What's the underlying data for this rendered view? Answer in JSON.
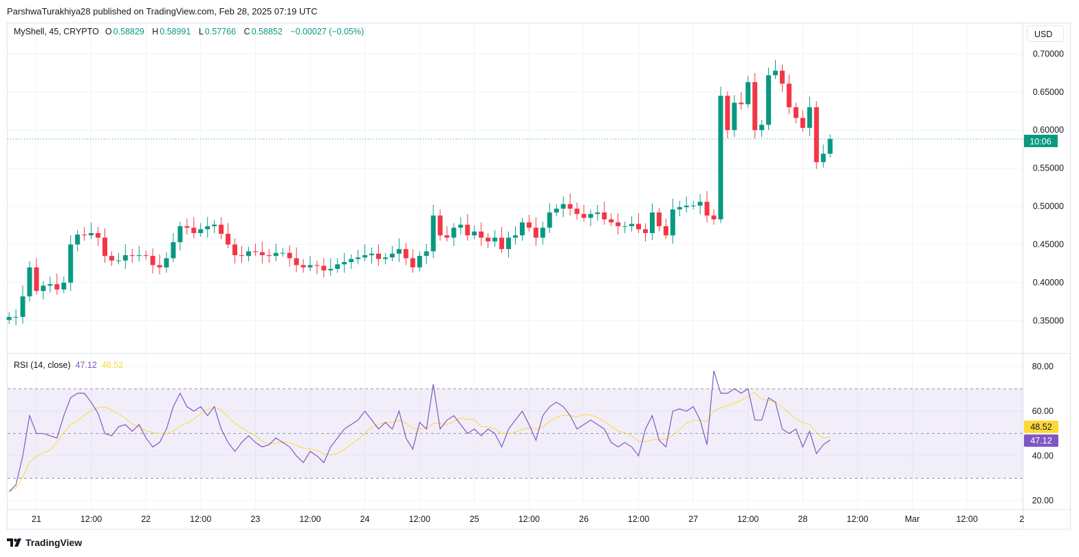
{
  "header": {
    "published": "ParshwaTurakhiya28 published on TradingView.com, Feb 28, 2025 07:19 UTC"
  },
  "legend": {
    "symbol": "MyShell, 45, CRYPTO",
    "open_label": "O",
    "open": "0.58829",
    "high_label": "H",
    "high": "0.58991",
    "low_label": "L",
    "low": "0.57766",
    "close_label": "C",
    "close": "0.58852",
    "change": "−0.00027 (−0.05%)"
  },
  "price_axis": {
    "currency_button": "USD",
    "ticks": [
      "0.70000",
      "0.65000",
      "0.60000",
      "0.55000",
      "0.50000",
      "0.45000",
      "0.40000",
      "0.35000"
    ],
    "countdown_label": "10:06"
  },
  "rsi": {
    "title": "RSI (14, close)",
    "value": "47.12",
    "ma_value": "48.52",
    "ticks": [
      "80.00",
      "60.00",
      "40.00",
      "20.00"
    ]
  },
  "time_axis": {
    "ticks": [
      "21",
      "12:00",
      "22",
      "12:00",
      "23",
      "12:00",
      "24",
      "12:00",
      "25",
      "12:00",
      "26",
      "12:00",
      "27",
      "12:00",
      "28",
      "12:00",
      "Mar",
      "12:00",
      "2"
    ]
  },
  "footer": {
    "brand": "TradingView"
  },
  "colors": {
    "up": "#089981",
    "down": "#f23645",
    "rsi": "#7e57c2",
    "rsi_ma": "#fdd835",
    "band": "#7e57c2"
  },
  "chart_data": [
    {
      "type": "candlestick",
      "symbol": "MyShell",
      "timeframe_minutes": 45,
      "sampled_start": "2025-02-20 18:00",
      "sampled_interval_minutes": 90,
      "ylim": [
        0.308,
        0.74
      ],
      "last_price": 0.58852,
      "grid": true,
      "closes": [
        0.355,
        0.355,
        0.382,
        0.42,
        0.389,
        0.396,
        0.398,
        0.391,
        0.4,
        0.45,
        0.463,
        0.462,
        0.465,
        0.459,
        0.435,
        0.429,
        0.429,
        0.436,
        0.435,
        0.436,
        0.435,
        0.423,
        0.42,
        0.432,
        0.453,
        0.474,
        0.472,
        0.465,
        0.47,
        0.474,
        0.476,
        0.464,
        0.45,
        0.436,
        0.435,
        0.441,
        0.44,
        0.436,
        0.435,
        0.439,
        0.439,
        0.432,
        0.423,
        0.42,
        0.423,
        0.422,
        0.416,
        0.418,
        0.424,
        0.427,
        0.431,
        0.433,
        0.436,
        0.438,
        0.431,
        0.433,
        0.438,
        0.444,
        0.432,
        0.42,
        0.435,
        0.441,
        0.488,
        0.462,
        0.459,
        0.472,
        0.476,
        0.462,
        0.467,
        0.459,
        0.454,
        0.459,
        0.444,
        0.459,
        0.462,
        0.479,
        0.472,
        0.459,
        0.472,
        0.492,
        0.497,
        0.503,
        0.497,
        0.49,
        0.485,
        0.49,
        0.492,
        0.483,
        0.479,
        0.474,
        0.474,
        0.477,
        0.47,
        0.465,
        0.492,
        0.474,
        0.462,
        0.496,
        0.499,
        0.501,
        0.501,
        0.506,
        0.488,
        0.483,
        0.645,
        0.6,
        0.636,
        0.634,
        0.663,
        0.6,
        0.607,
        0.672,
        0.678,
        0.661,
        0.63,
        0.616,
        0.603,
        0.63,
        0.558,
        0.569,
        0.5885
      ]
    },
    {
      "type": "line",
      "title": "RSI (14, close)",
      "ylim": [
        16.3,
        85.5
      ],
      "bands": {
        "upper": 70,
        "middle": 50,
        "lower": 30
      },
      "rsi": [
        24,
        27,
        40,
        58,
        50,
        50,
        49,
        48,
        58,
        66,
        68,
        68,
        64,
        59,
        50,
        49,
        53,
        54,
        51,
        54,
        48,
        44,
        46,
        52,
        62,
        68,
        62,
        60,
        62,
        58,
        62,
        52,
        46,
        42,
        46,
        49,
        46,
        44,
        45,
        48,
        46,
        44,
        40,
        37,
        42,
        40,
        37,
        44,
        48,
        52,
        54,
        56,
        60,
        56,
        52,
        55,
        52,
        60,
        48,
        43,
        55,
        52,
        72,
        52,
        56,
        58,
        54,
        50,
        52,
        49,
        52,
        50,
        44,
        52,
        56,
        60,
        54,
        47,
        58,
        62,
        64,
        62,
        58,
        52,
        54,
        56,
        54,
        52,
        46,
        44,
        46,
        44,
        40,
        52,
        58,
        47,
        44,
        60,
        61,
        60,
        62,
        56,
        45,
        78,
        68,
        68,
        70,
        68,
        70,
        56,
        56,
        66,
        64,
        52,
        50,
        52,
        44,
        51,
        41,
        45,
        47.12
      ]
    }
  ]
}
